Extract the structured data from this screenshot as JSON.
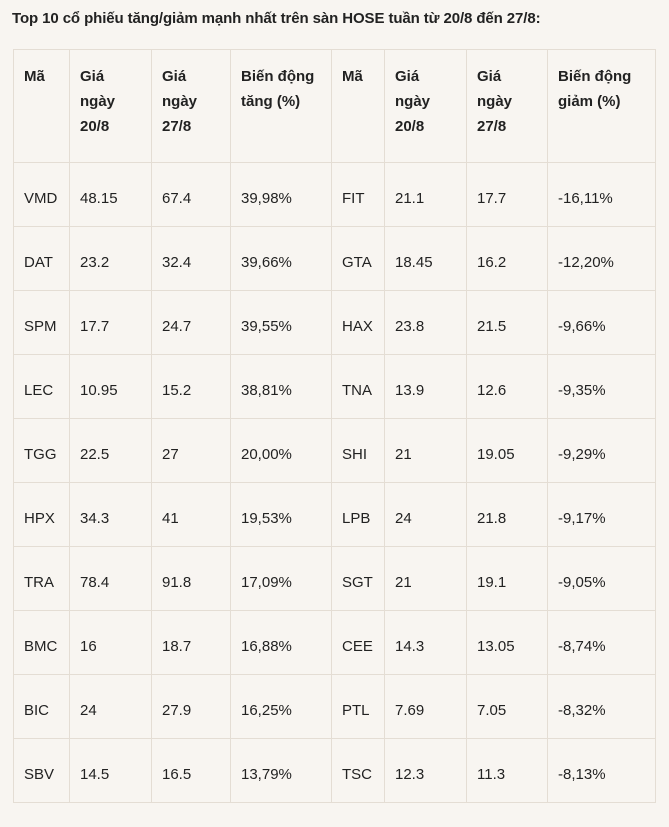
{
  "title": "Top 10 cổ phiếu tăng/giảm mạnh nhất trên sàn HOSE tuần từ 20/8 đến 27/8:",
  "headers": [
    "Mã",
    "Giá ngày 20/8",
    "Giá ngày 27/8",
    "Biến động tăng (%)",
    "Mã",
    "Giá ngày 20/8",
    "Giá ngày 27/8",
    "Biến động giảm (%)"
  ],
  "rows": [
    [
      "VMD",
      "48.15",
      "67.4",
      "39,98%",
      "FIT",
      "21.1",
      "17.7",
      "-16,11%"
    ],
    [
      "DAT",
      "23.2",
      "32.4",
      "39,66%",
      "GTA",
      "18.45",
      "16.2",
      "-12,20%"
    ],
    [
      "SPM",
      "17.7",
      "24.7",
      "39,55%",
      "HAX",
      "23.8",
      "21.5",
      "-9,66%"
    ],
    [
      "LEC",
      "10.95",
      "15.2",
      "38,81%",
      "TNA",
      "13.9",
      "12.6",
      "-9,35%"
    ],
    [
      "TGG",
      "22.5",
      "27",
      "20,00%",
      "SHI",
      "21",
      "19.05",
      "-9,29%"
    ],
    [
      "HPX",
      "34.3",
      "41",
      "19,53%",
      "LPB",
      "24",
      "21.8",
      "-9,17%"
    ],
    [
      "TRA",
      "78.4",
      "91.8",
      "17,09%",
      "SGT",
      "21",
      "19.1",
      "-9,05%"
    ],
    [
      "BMC",
      "16",
      "18.7",
      "16,88%",
      "CEE",
      "14.3",
      "13.05",
      "-8,74%"
    ],
    [
      "BIC",
      "24",
      "27.9",
      "16,25%",
      "PTL",
      "7.69",
      "7.05",
      "-8,32%"
    ],
    [
      "SBV",
      "14.5",
      "16.5",
      "13,79%",
      "TSC",
      "12.3",
      "11.3",
      "-8,13%"
    ]
  ]
}
